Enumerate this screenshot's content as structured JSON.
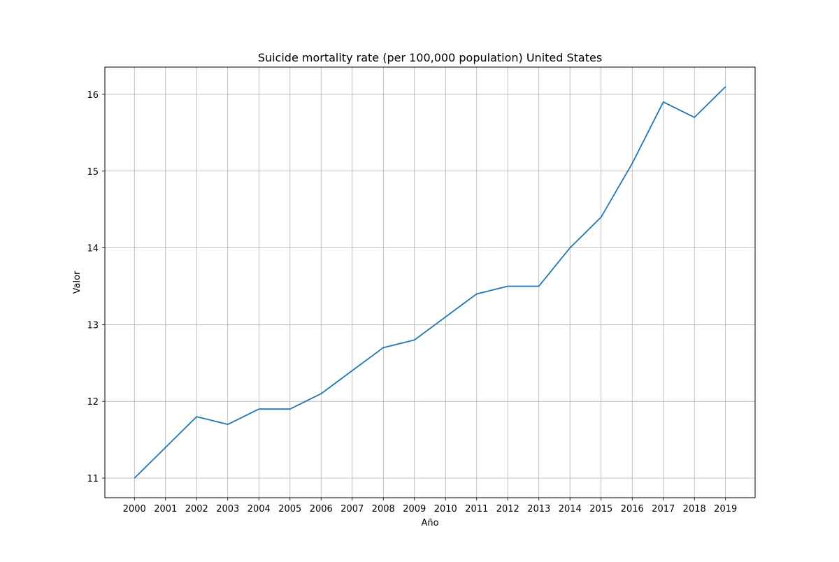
{
  "chart_data": {
    "type": "line",
    "title": "Suicide mortality rate (per 100,000 population) United States",
    "xlabel": "Año",
    "ylabel": "Valor",
    "x": [
      2000,
      2001,
      2002,
      2003,
      2004,
      2005,
      2006,
      2007,
      2008,
      2009,
      2010,
      2011,
      2012,
      2013,
      2014,
      2015,
      2016,
      2017,
      2018,
      2019
    ],
    "series": [
      {
        "values": [
          11.0,
          11.4,
          11.8,
          11.7,
          11.9,
          11.9,
          12.1,
          12.4,
          12.7,
          12.8,
          13.1,
          13.4,
          13.5,
          13.5,
          14.0,
          14.4,
          15.1,
          15.9,
          15.7,
          16.1
        ],
        "color": "#1f77b4"
      }
    ],
    "xlim": [
      1999.05,
      2019.95
    ],
    "ylim": [
      10.745,
      16.355
    ],
    "yticks": [
      11,
      12,
      13,
      14,
      15,
      16
    ],
    "grid": true,
    "legend": "none"
  }
}
